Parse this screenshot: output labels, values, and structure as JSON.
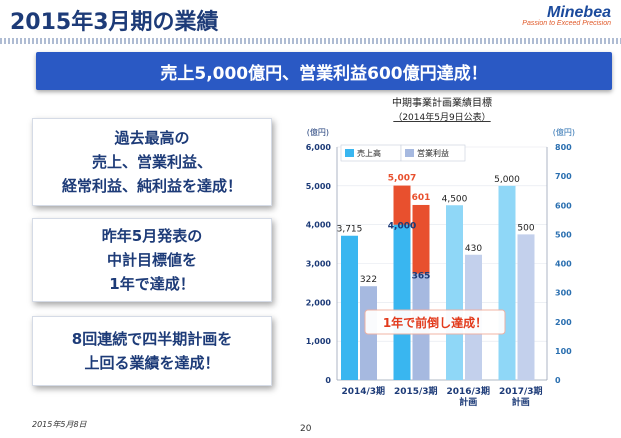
{
  "header": {
    "title": "2015年3月期の業績",
    "logo_name": "Minebea",
    "logo_tagline": "Passion to Exceed Precision"
  },
  "banner": "売上5,000億円、営業利益600億円達成！",
  "boxes": [
    "過去最高の\n売上、営業利益、\n経常利益、純利益を達成！",
    "昨年5月発表の\n中計目標値を\n1年で達成！",
    "8回連続で四半期計画を\n上回る業績を達成！"
  ],
  "footer": {
    "date": "2015年5月8日",
    "page": "20"
  },
  "chart_data": {
    "type": "bar",
    "title": "中期事業計画業績目標",
    "subtitle": "（2014年5月9日公表）",
    "categories": [
      "2014/3期",
      "2015/3期",
      "2016/3期\n計画",
      "2017/3期\n計画"
    ],
    "series": [
      {
        "name": "売上高",
        "axis": "left",
        "values": [
          3715,
          4000,
          4500,
          5000
        ],
        "labels": [
          "3,715",
          "4,000",
          "4,500",
          "5,000"
        ]
      },
      {
        "name": "営業利益",
        "axis": "right",
        "values": [
          322,
          365,
          430,
          500
        ],
        "labels": [
          "322",
          "365",
          "430",
          "500"
        ]
      }
    ],
    "actual_2015": {
      "sales": 5007,
      "sales_label": "5,007",
      "profit": 601,
      "profit_label": "601"
    },
    "left_axis": {
      "unit": "(億円)",
      "ylim": [
        0,
        6000
      ],
      "ticks": [
        "0",
        "1,000",
        "2,000",
        "3,000",
        "4,000",
        "5,000",
        "6,000"
      ]
    },
    "right_axis": {
      "unit": "(億円)",
      "ylim": [
        0,
        800
      ],
      "ticks": [
        "0",
        "100",
        "200",
        "300",
        "400",
        "500",
        "600",
        "700",
        "800"
      ]
    },
    "annotation": "1年で前倒し達成！",
    "colors": {
      "sales": "#39b6f0",
      "sales_plan": "#8fd7f7",
      "profit": "#a6b9e0",
      "profit_plan": "#c3d0ec",
      "actual": "#e8502e",
      "axis_left": "#1d3b78",
      "axis_right": "#2a6fb0"
    },
    "legend_position": "top-left"
  }
}
